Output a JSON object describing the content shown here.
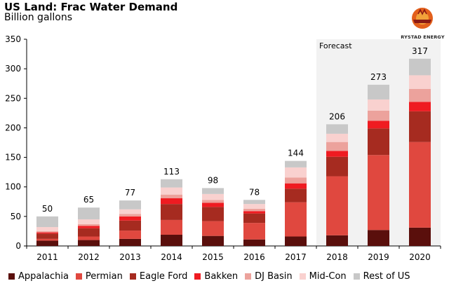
{
  "header": {
    "title": "US Land: Frac Water Demand",
    "subtitle": "Billion gallons"
  },
  "logo": {
    "text": "RYSTAD ENERGY",
    "icon": "rystad-energy-logo",
    "colors": [
      "#e3601c",
      "#f2a23a",
      "#8b1a14"
    ]
  },
  "chart_data": {
    "type": "bar",
    "stacked": true,
    "categories": [
      "2011",
      "2012",
      "2013",
      "2014",
      "2015",
      "2016",
      "2017",
      "2018",
      "2019",
      "2020"
    ],
    "ylim": [
      0,
      350
    ],
    "yticks": [
      0,
      50,
      100,
      150,
      200,
      250,
      300,
      350
    ],
    "xlabel": "",
    "ylabel": "",
    "grid": false,
    "legend_position": "bottom",
    "forecast": {
      "label": "Forecast",
      "categories": [
        "2018",
        "2019",
        "2020"
      ],
      "shade_color": "#f2f2f2"
    },
    "totals": [
      50,
      65,
      77,
      113,
      98,
      78,
      144,
      206,
      273,
      317
    ],
    "series": [
      {
        "name": "Appalachia",
        "color": "#5a0f0c",
        "values": [
          9,
          10,
          12,
          19,
          17,
          11,
          16,
          18,
          27,
          31
        ]
      },
      {
        "name": "Permian",
        "color": "#e0483f",
        "values": [
          3,
          6,
          14,
          25,
          25,
          28,
          58,
          100,
          127,
          145
        ]
      },
      {
        "name": "Eagle Ford",
        "color": "#a62b20",
        "values": [
          9,
          14,
          17,
          27,
          24,
          16,
          23,
          33,
          45,
          52
        ]
      },
      {
        "name": "Bakken",
        "color": "#ef1b21",
        "values": [
          2,
          4,
          7,
          10,
          7,
          4,
          9,
          10,
          13,
          16
        ]
      },
      {
        "name": "DJ Basin",
        "color": "#eca29c",
        "values": [
          2,
          3,
          4,
          6,
          5,
          4,
          10,
          15,
          17,
          22
        ]
      },
      {
        "name": "Mid-Con",
        "color": "#f9d1cf",
        "values": [
          7,
          8,
          8,
          12,
          10,
          8,
          17,
          14,
          19,
          23
        ]
      },
      {
        "name": "Rest of US",
        "color": "#c8c8c8",
        "values": [
          18,
          20,
          15,
          14,
          10,
          7,
          11,
          16,
          25,
          28
        ]
      }
    ]
  }
}
